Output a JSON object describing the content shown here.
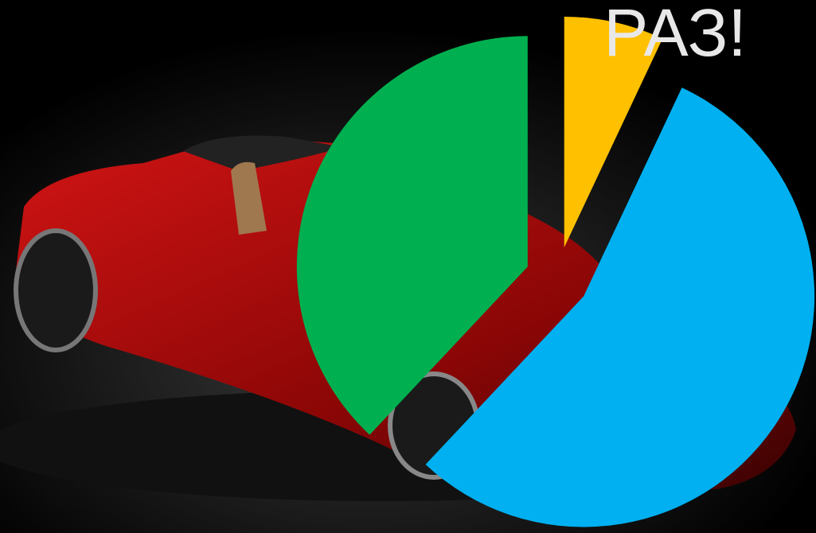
{
  "chart_data": {
    "type": "pie",
    "title": "РАЗ!",
    "values": [
      7,
      55,
      38
    ],
    "colors": [
      "#ffc000",
      "#00b0f0",
      "#00b050"
    ],
    "exploded": true
  }
}
